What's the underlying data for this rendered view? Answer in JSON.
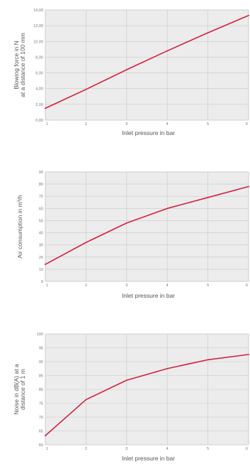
{
  "colors": {
    "series": "#d4213d",
    "plot_background": "#ececec",
    "grid": "#c8c8c8"
  },
  "chart_data": [
    {
      "type": "line",
      "title": "",
      "xlabel": "Inlet pressure in bar",
      "ylabel_lines": [
        "Blowing force in N",
        "at a distance of 100 mm"
      ],
      "x": [
        1,
        2,
        3,
        4,
        5,
        6
      ],
      "xlim": [
        1,
        6
      ],
      "ylim": [
        0,
        14
      ],
      "yticks": [
        0,
        2,
        4,
        6,
        8,
        10,
        12,
        14
      ],
      "ytick_labels": [
        "0,00",
        "2,00",
        "4,00",
        "6,00",
        "8,00",
        "10,00",
        "12,00",
        "14,00"
      ],
      "xtick_labels": [
        "1",
        "2",
        "3",
        "4",
        "5",
        "6"
      ],
      "grid": true,
      "series": [
        {
          "values": [
            1.5,
            3.9,
            6.4,
            8.8,
            11.1,
            13.3
          ]
        }
      ]
    },
    {
      "type": "line",
      "title": "",
      "xlabel": "Inlet pressure in bar",
      "ylabel_lines": [
        "Air consumption in m³/h"
      ],
      "x": [
        1,
        2,
        3,
        4,
        5,
        6
      ],
      "xlim": [
        1,
        6
      ],
      "ylim": [
        0,
        90
      ],
      "yticks": [
        0,
        10,
        20,
        30,
        40,
        50,
        60,
        70,
        80,
        90
      ],
      "ytick_labels": [
        "0",
        "10",
        "20",
        "30",
        "40",
        "50",
        "60",
        "70",
        "80",
        "90"
      ],
      "xtick_labels": [
        "1",
        "2",
        "3",
        "4",
        "5",
        "6"
      ],
      "grid": true,
      "series": [
        {
          "values": [
            14,
            32,
            48,
            60,
            69,
            78
          ]
        }
      ]
    },
    {
      "type": "line",
      "title": "",
      "xlabel": "Inlet pressure in bar",
      "ylabel_lines": [
        "Noise in dB(A) at a",
        "distance of 1 m"
      ],
      "x": [
        1,
        2,
        3,
        4,
        5,
        6
      ],
      "xlim": [
        1,
        6
      ],
      "ylim": [
        60,
        100
      ],
      "yticks": [
        60,
        65,
        70,
        75,
        80,
        85,
        90,
        95,
        100
      ],
      "ytick_labels": [
        "60",
        "65",
        "70",
        "75",
        "80",
        "85",
        "90",
        "95",
        "100"
      ],
      "xtick_labels": [
        "1",
        "2",
        "3",
        "4",
        "5",
        "6"
      ],
      "grid": true,
      "series": [
        {
          "values": [
            63.3,
            76.3,
            83.3,
            87.5,
            90.7,
            92.6
          ]
        }
      ]
    }
  ]
}
